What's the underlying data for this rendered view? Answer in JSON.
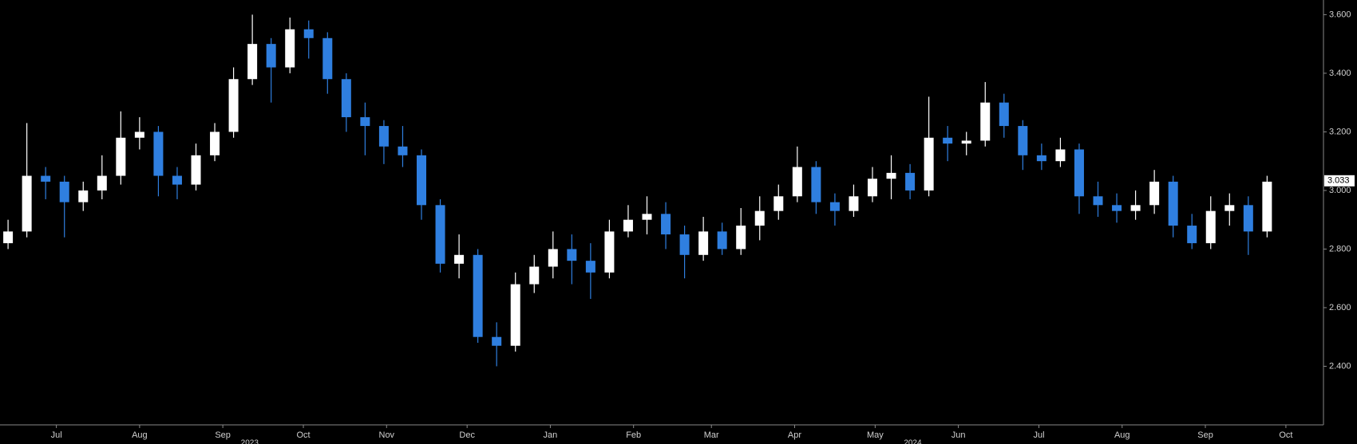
{
  "chart_data": {
    "type": "candlestick",
    "up_color": "#ffffff",
    "down_color": "#2f7fe0",
    "x": [
      3,
      10,
      17,
      24,
      31,
      38,
      45,
      52,
      59,
      66,
      73,
      80,
      87,
      94,
      101,
      108,
      115,
      122,
      129,
      136,
      143,
      150,
      157,
      164,
      171,
      178,
      185,
      192,
      199,
      206,
      213,
      220,
      227,
      234,
      241,
      248,
      255,
      262,
      269,
      276,
      283,
      290,
      297,
      304,
      311,
      318,
      325,
      332,
      339,
      346,
      353,
      360,
      367,
      374,
      381,
      388,
      395,
      402,
      409,
      416,
      423,
      430,
      437,
      444,
      451,
      458,
      465,
      472
    ],
    "open": [
      2.82,
      2.86,
      3.05,
      3.03,
      2.96,
      3.0,
      3.05,
      3.18,
      3.2,
      3.05,
      3.02,
      3.12,
      3.2,
      3.38,
      3.5,
      3.42,
      3.55,
      3.52,
      3.38,
      3.25,
      3.22,
      3.15,
      3.12,
      2.95,
      2.75,
      2.78,
      2.5,
      2.47,
      2.68,
      2.74,
      2.8,
      2.76,
      2.72,
      2.86,
      2.9,
      2.92,
      2.85,
      2.78,
      2.86,
      2.8,
      2.88,
      2.93,
      2.98,
      3.08,
      2.96,
      2.93,
      2.98,
      3.04,
      3.06,
      3.0,
      3.18,
      3.16,
      3.17,
      3.3,
      3.22,
      3.12,
      3.1,
      3.14,
      2.98,
      2.95,
      2.93,
      2.95,
      3.03,
      2.88,
      2.82,
      2.93,
      2.95,
      2.86
    ],
    "high": [
      2.9,
      3.23,
      3.08,
      3.05,
      3.03,
      3.12,
      3.27,
      3.25,
      3.22,
      3.08,
      3.16,
      3.23,
      3.42,
      3.6,
      3.52,
      3.59,
      3.58,
      3.54,
      3.4,
      3.3,
      3.24,
      3.22,
      3.14,
      2.97,
      2.85,
      2.8,
      2.55,
      2.72,
      2.78,
      2.86,
      2.85,
      2.82,
      2.9,
      2.95,
      2.98,
      2.96,
      2.88,
      2.91,
      2.89,
      2.94,
      2.98,
      3.02,
      3.15,
      3.1,
      2.99,
      3.02,
      3.08,
      3.12,
      3.09,
      3.32,
      3.22,
      3.2,
      3.37,
      3.33,
      3.24,
      3.16,
      3.18,
      3.16,
      3.03,
      2.99,
      3.0,
      3.07,
      3.05,
      2.92,
      2.98,
      2.99,
      2.98,
      3.05
    ],
    "low": [
      2.8,
      2.84,
      2.97,
      2.84,
      2.93,
      2.97,
      3.02,
      3.14,
      2.98,
      2.97,
      3.0,
      3.1,
      3.18,
      3.36,
      3.3,
      3.4,
      3.45,
      3.33,
      3.2,
      3.12,
      3.09,
      3.08,
      2.9,
      2.72,
      2.7,
      2.48,
      2.4,
      2.45,
      2.65,
      2.7,
      2.68,
      2.63,
      2.7,
      2.84,
      2.85,
      2.8,
      2.7,
      2.76,
      2.78,
      2.78,
      2.83,
      2.9,
      2.96,
      2.92,
      2.88,
      2.91,
      2.96,
      2.97,
      2.97,
      2.98,
      3.1,
      3.12,
      3.15,
      3.18,
      3.07,
      3.07,
      3.08,
      2.92,
      2.91,
      2.89,
      2.9,
      2.92,
      2.84,
      2.8,
      2.8,
      2.88,
      2.78,
      2.84
    ],
    "close": [
      2.86,
      3.05,
      3.03,
      2.96,
      3.0,
      3.05,
      3.18,
      3.2,
      3.05,
      3.02,
      3.12,
      3.2,
      3.38,
      3.5,
      3.42,
      3.55,
      3.52,
      3.38,
      3.25,
      3.22,
      3.15,
      3.12,
      2.95,
      2.75,
      2.78,
      2.5,
      2.47,
      2.68,
      2.74,
      2.8,
      2.76,
      2.72,
      2.86,
      2.9,
      2.92,
      2.85,
      2.78,
      2.86,
      2.8,
      2.88,
      2.93,
      2.98,
      3.08,
      2.96,
      2.93,
      2.98,
      3.04,
      3.06,
      3.0,
      3.18,
      3.16,
      3.17,
      3.3,
      3.22,
      3.12,
      3.1,
      3.14,
      2.98,
      2.95,
      2.93,
      2.95,
      3.03,
      2.88,
      2.82,
      2.93,
      2.95,
      2.86,
      3.03
    ],
    "xlim": [
      0,
      493
    ],
    "ylim": [
      2.2,
      3.65
    ],
    "yticks": [
      {
        "value": 2.4,
        "label": "2.400"
      },
      {
        "value": 2.6,
        "label": "2.600"
      },
      {
        "value": 2.8,
        "label": "2.800"
      },
      {
        "value": 3.0,
        "label": "3.000"
      },
      {
        "value": 3.2,
        "label": "3.200"
      },
      {
        "value": 3.4,
        "label": "3.400"
      },
      {
        "value": 3.6,
        "label": "3.600"
      }
    ],
    "xticks": [
      {
        "value": 21,
        "label": "Jul"
      },
      {
        "value": 52,
        "label": "Aug"
      },
      {
        "value": 83,
        "label": "Sep"
      },
      {
        "value": 113,
        "label": "Oct"
      },
      {
        "value": 144,
        "label": "Nov"
      },
      {
        "value": 174,
        "label": "Dec"
      },
      {
        "value": 205,
        "label": "Jan"
      },
      {
        "value": 236,
        "label": "Feb"
      },
      {
        "value": 265,
        "label": "Mar"
      },
      {
        "value": 296,
        "label": "Apr"
      },
      {
        "value": 326,
        "label": "May"
      },
      {
        "value": 357,
        "label": "Jun"
      },
      {
        "value": 387,
        "label": "Jul"
      },
      {
        "value": 418,
        "label": "Aug"
      },
      {
        "value": 449,
        "label": "Sep"
      },
      {
        "value": 479,
        "label": "Oct"
      }
    ],
    "year_ticks": [
      {
        "value": 93,
        "label": "2023"
      },
      {
        "value": 340,
        "label": "2024"
      }
    ],
    "last_value": {
      "value": 3.033,
      "label": "3.033"
    }
  }
}
